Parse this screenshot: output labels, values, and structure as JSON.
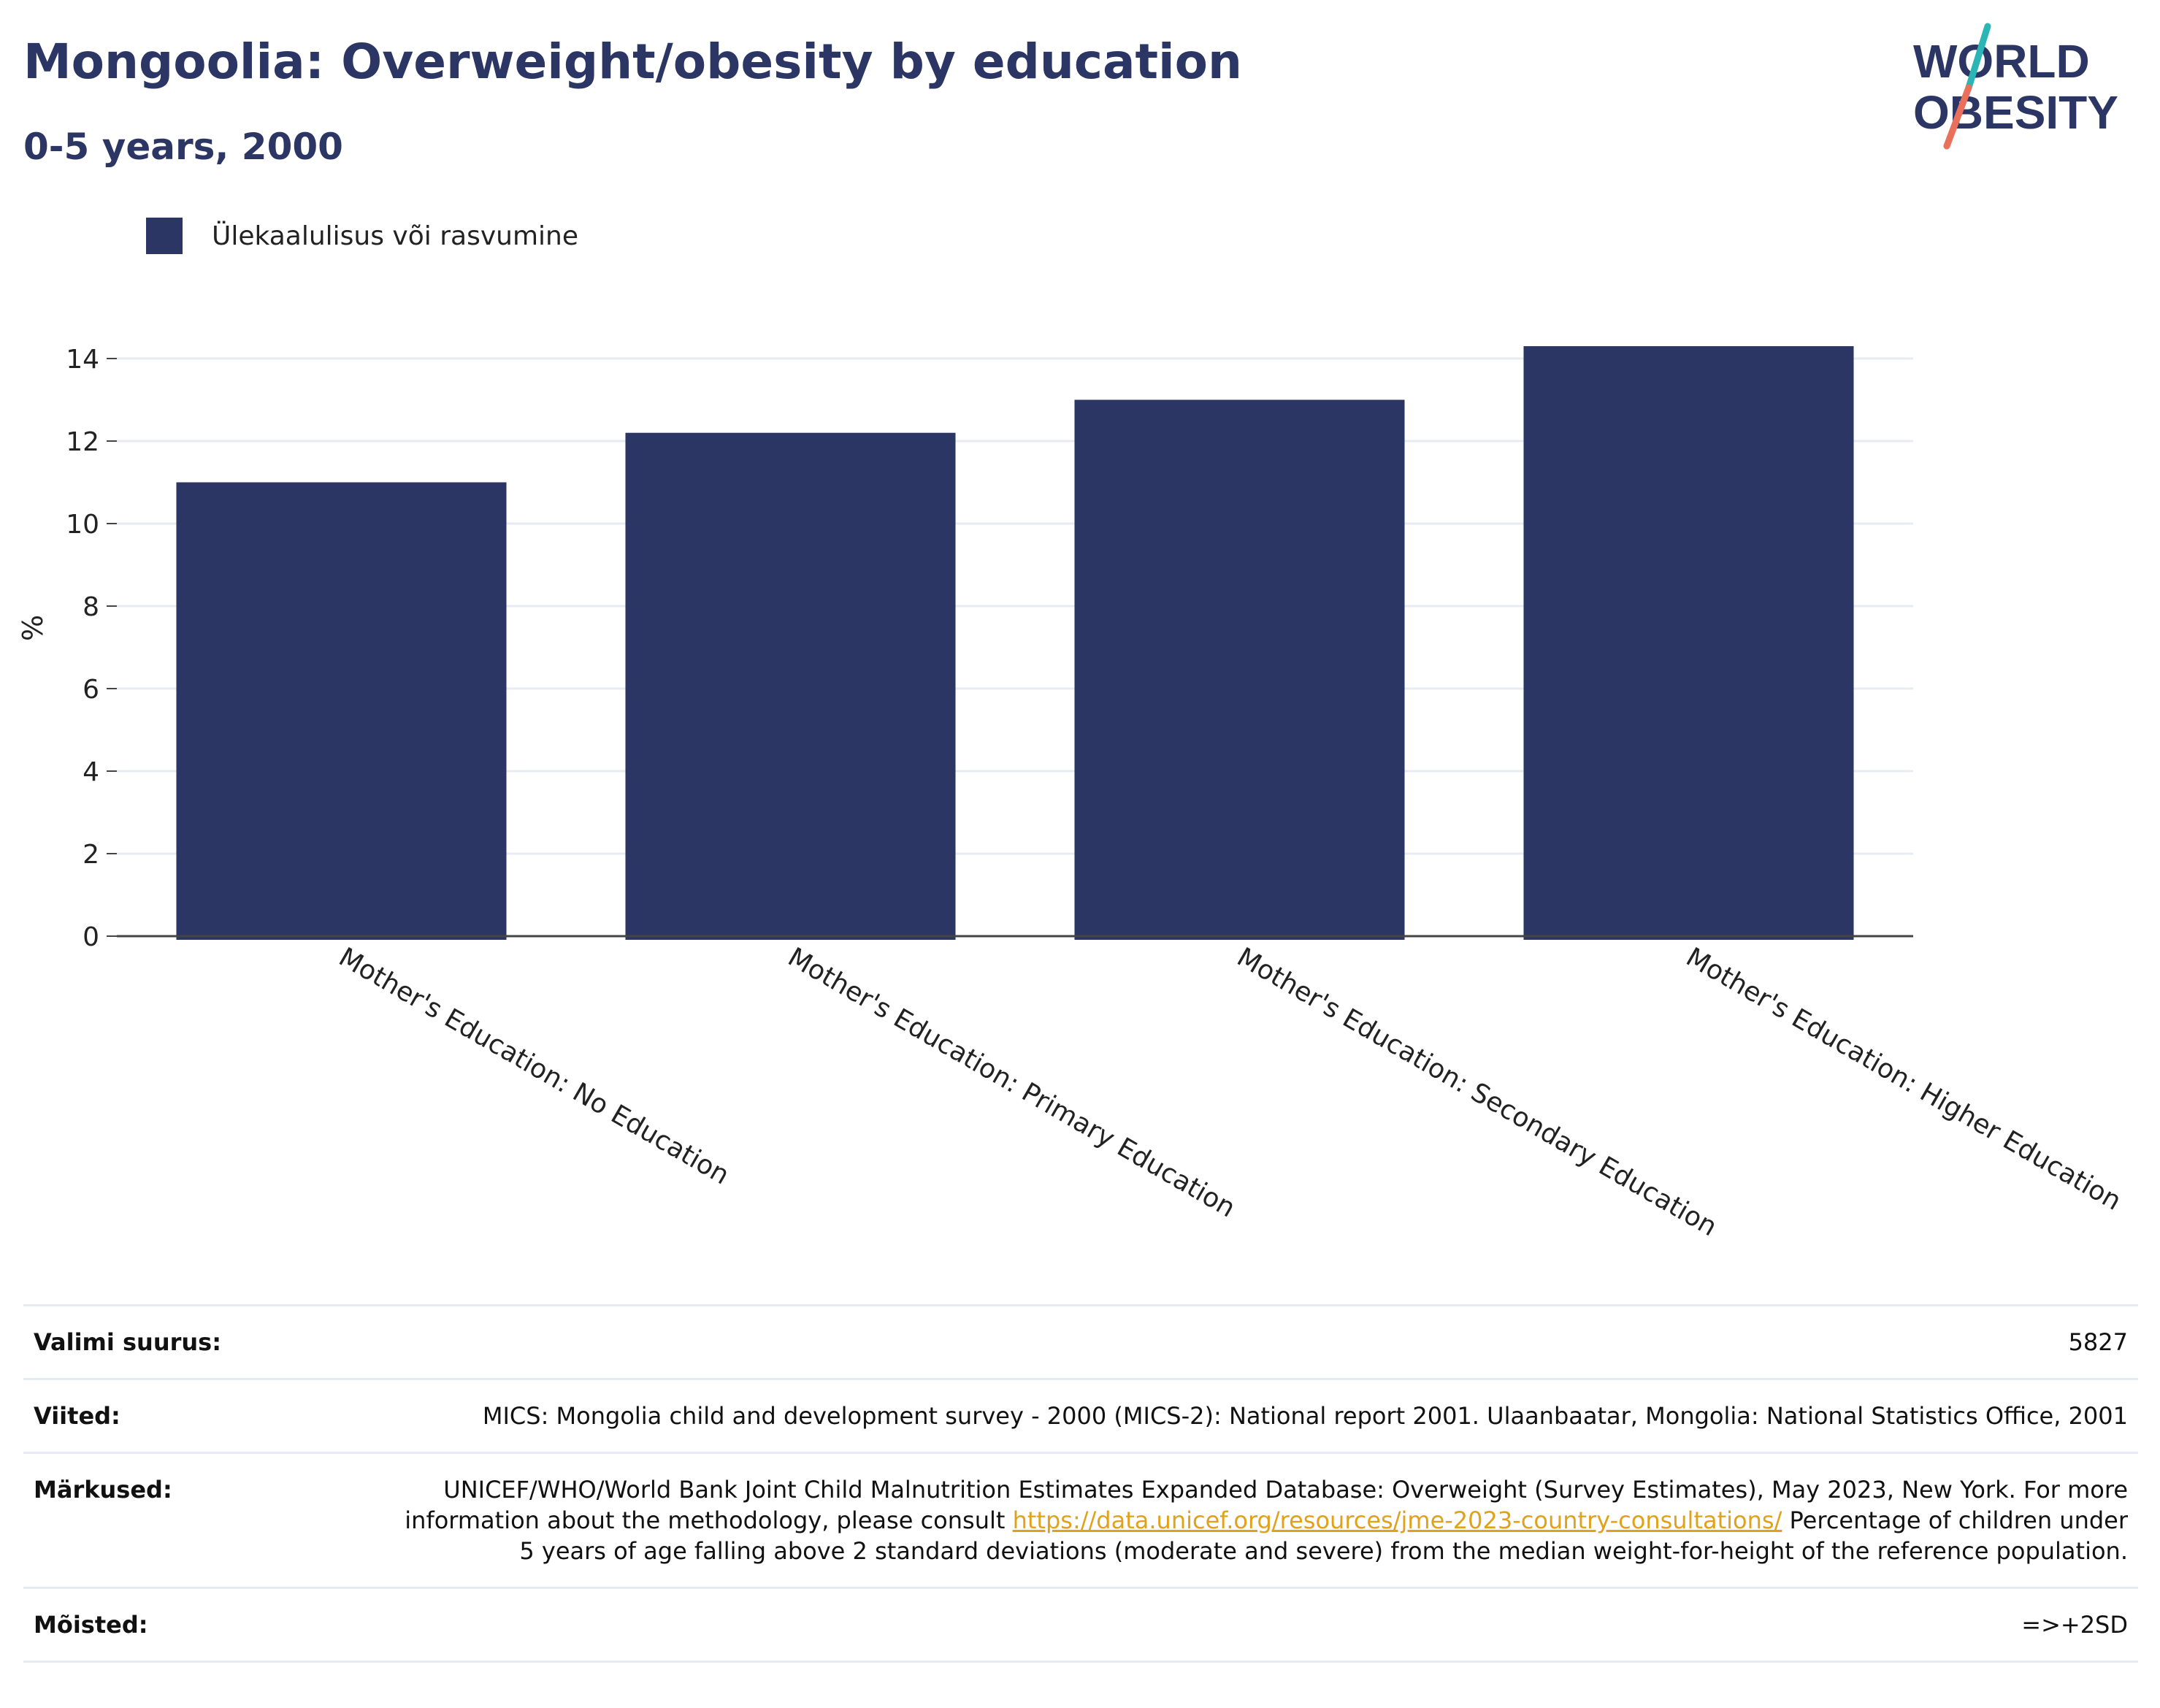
{
  "header": {
    "title": "Mongoolia: Overweight/obesity by education",
    "subtitle": "0-5 years, 2000"
  },
  "logo": {
    "line1": "W",
    "line1_rest": "RLD",
    "line2": "BESITY",
    "text": "WORLD OBESITY",
    "colors": {
      "navy": "#2b3664",
      "teal": "#2bb5b5",
      "coral": "#e9705b"
    }
  },
  "legend": {
    "label": "Ülekaalulisus või rasvumine",
    "color": "#2b3664"
  },
  "chart_data": {
    "type": "bar",
    "categories": [
      "Mother's Education: No Education",
      "Mother's Education: Primary Education",
      "Mother's Education: Secondary Education",
      "Mother's Education: Higher Education"
    ],
    "series": [
      {
        "name": "Ülekaalulisus või rasvumine",
        "values": [
          11.0,
          12.2,
          13.0,
          14.3
        ],
        "color": "#2b3664"
      }
    ],
    "ylabel": "%",
    "xlabel": "",
    "ylim": [
      0,
      15
    ],
    "yticks": [
      0,
      2,
      4,
      6,
      8,
      10,
      12,
      14
    ],
    "grid": true,
    "legend_position": "top-left"
  },
  "info": {
    "sample_label": "Valimi suurus:",
    "sample_value": "5827",
    "references_label": "Viited:",
    "references_value": "MICS: Mongolia child and development survey - 2000 (MICS-2): National report 2001. Ulaanbaatar, Mongolia: National Statistics Office, 2001",
    "notes_label": "Märkused:",
    "notes_text1": "UNICEF/WHO/World Bank Joint Child Malnutrition Estimates Expanded Database: Overweight (Survey Estimates), May 2023, New York. For more information about the methodology, please consult ",
    "notes_link": "https://data.unicef.org/resources/jme-2023-country-consultations/",
    "notes_text2": " Percentage of children under 5 years of age falling above 2 standard deviations (moderate and severe) from the median weight-for-height of the reference population.",
    "definitions_label": "Mõisted:",
    "definitions_value": "=>+2SD"
  }
}
